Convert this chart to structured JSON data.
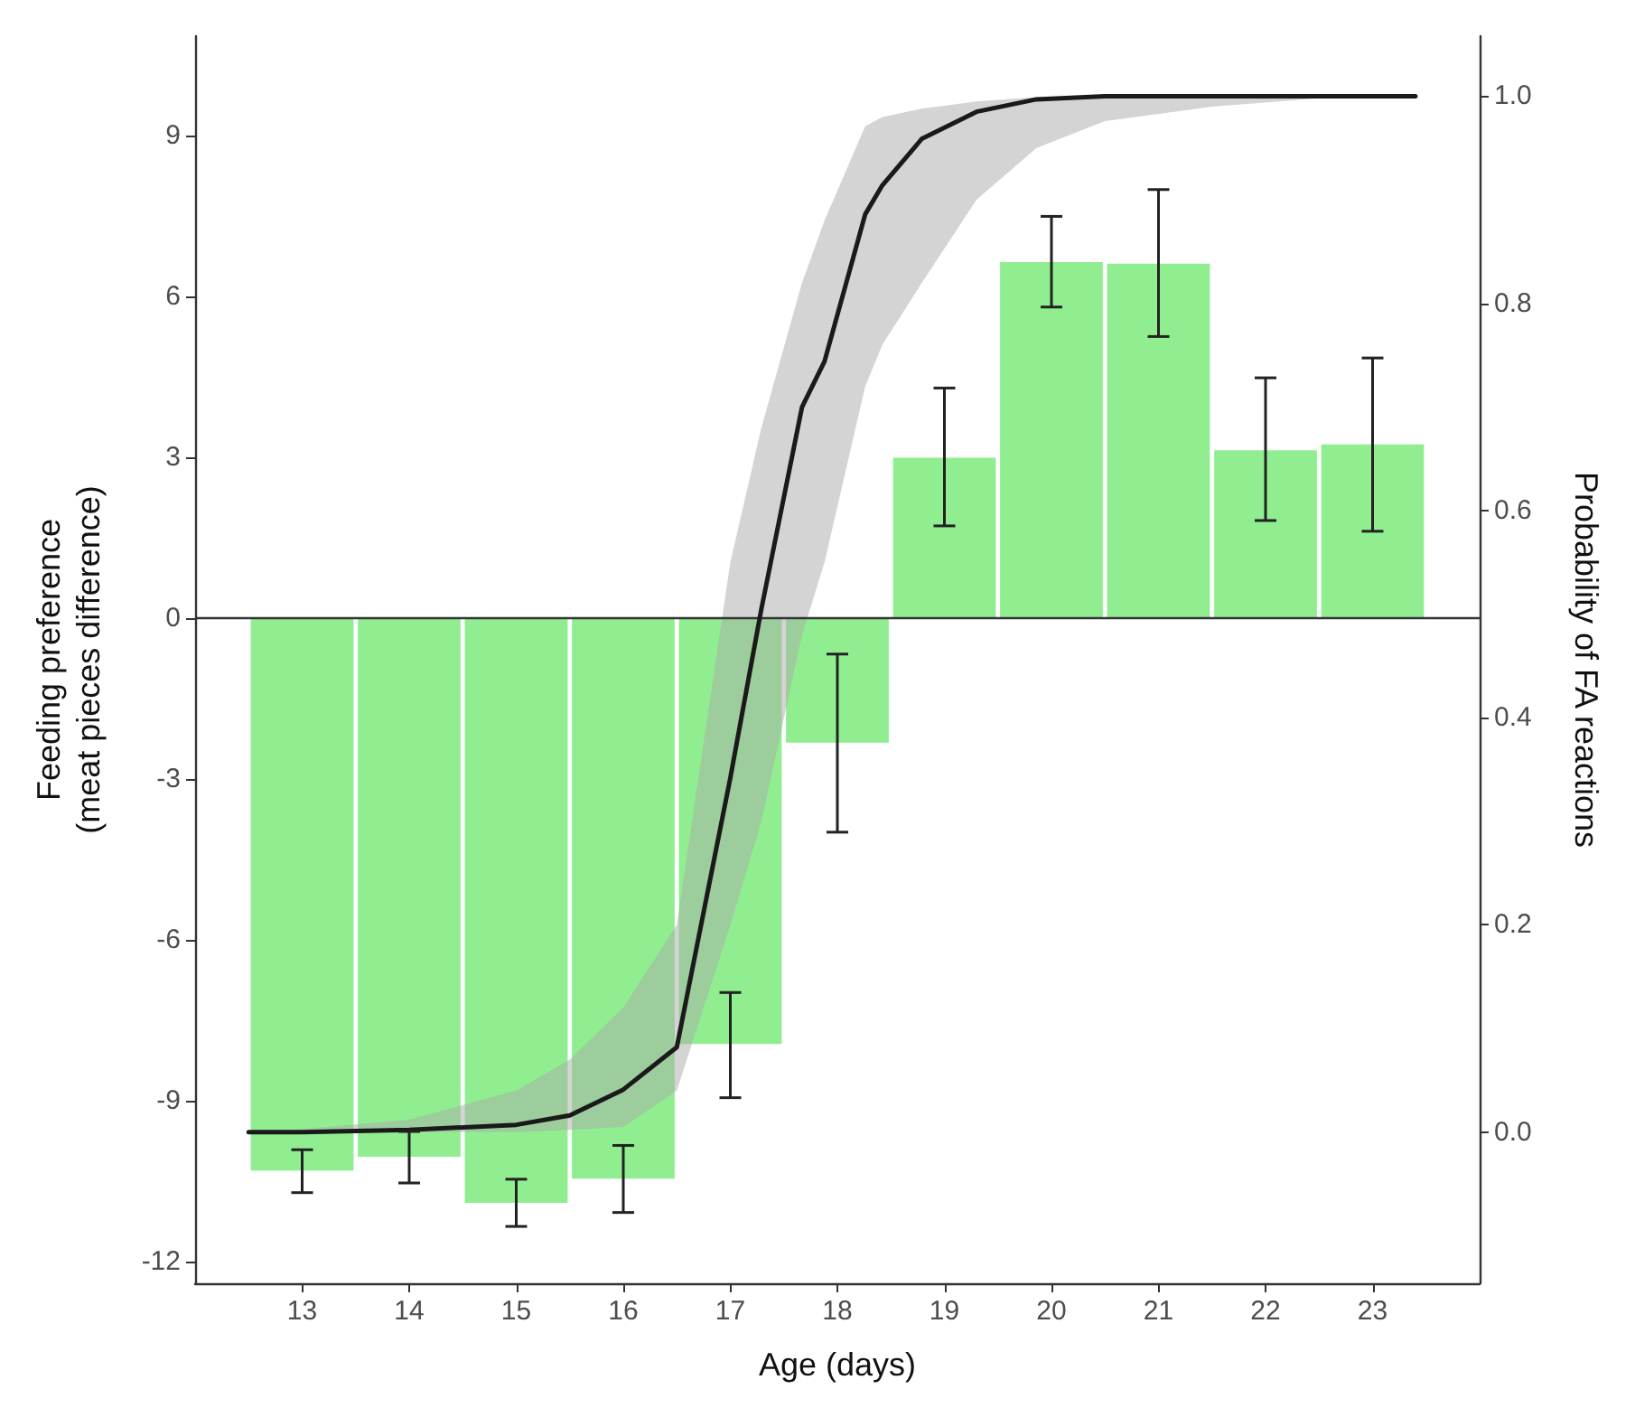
{
  "chart_data": {
    "type": "bar",
    "xlabel": "Age (days)",
    "ylabel": "Feeding preference\n(meat pieces difference)",
    "y2label": "Probability of FA reactions",
    "x": [
      13,
      14,
      15,
      16,
      17,
      18,
      19,
      20,
      21,
      22,
      23
    ],
    "xlim": [
      12.0,
      24.0
    ],
    "xticks": [
      13,
      14,
      15,
      16,
      17,
      18,
      19,
      20,
      21,
      22,
      23
    ],
    "ylim": [
      -12.4,
      10.85
    ],
    "yticks": [
      -12,
      -9,
      -6,
      -3,
      0,
      3,
      6,
      9
    ],
    "y2lim": [
      -0.146,
      1.058
    ],
    "y2ticks": [
      {
        "value": 0,
        "label": "0.0"
      },
      {
        "value": 0.2,
        "label": "0.2"
      },
      {
        "value": 0.4,
        "label": "0.4"
      },
      {
        "value": 0.6,
        "label": "0.6"
      },
      {
        "value": 0.8,
        "label": "0.8"
      },
      {
        "value": 1,
        "label": "1.0"
      }
    ],
    "grid": false,
    "ref_lines": [
      {
        "axis": "y",
        "value": 0,
        "color": "#333333"
      }
    ],
    "series": [
      {
        "color": "#90ee90",
        "values": [
          -10.3,
          -10.04,
          -10.9,
          -10.45,
          -7.94,
          -2.32,
          2.99,
          6.64,
          6.61,
          3.13,
          3.24
        ],
        "errors": [
          [
            -10.71,
            -9.91
          ],
          [
            -10.53,
            -9.57
          ],
          [
            -11.34,
            -10.46
          ],
          [
            -11.08,
            -9.83
          ],
          [
            -8.94,
            -6.98
          ],
          [
            -3.99,
            -0.67
          ],
          [
            1.72,
            4.29
          ],
          [
            5.8,
            7.49
          ],
          [
            5.25,
            7.99
          ],
          [
            1.82,
            4.48
          ],
          [
            1.62,
            4.85
          ]
        ]
      },
      {
        "type": "line",
        "axis": "y2",
        "color": "#1a1a1a",
        "marker": "none",
        "line_style": "solid",
        "x": [
          12.5,
          13,
          14,
          15,
          15.5,
          16,
          16.5,
          17,
          17.29,
          17.67,
          17.88,
          18.26,
          18.42,
          18.79,
          19.3,
          19.86,
          20.5,
          21.5,
          22.5,
          23.4
        ],
        "values": [
          0,
          0,
          0.002,
          0.007,
          0.016,
          0.041,
          0.082,
          0.342,
          0.505,
          0.7,
          0.744,
          0.886,
          0.914,
          0.959,
          0.985,
          0.997,
          1,
          1,
          1,
          1
        ],
        "lower": [
          0,
          0,
          0,
          0,
          0.002,
          0.005,
          0.04,
          0.2,
          0.3,
          0.48,
          0.55,
          0.72,
          0.76,
          0.82,
          0.9,
          0.95,
          0.976,
          0.99,
          0.998,
          1
        ],
        "upper": [
          0,
          0.003,
          0.012,
          0.04,
          0.07,
          0.12,
          0.2,
          0.55,
          0.68,
          0.82,
          0.88,
          0.971,
          0.98,
          0.988,
          0.995,
          0.999,
          1,
          1,
          1,
          1
        ]
      }
    ]
  }
}
